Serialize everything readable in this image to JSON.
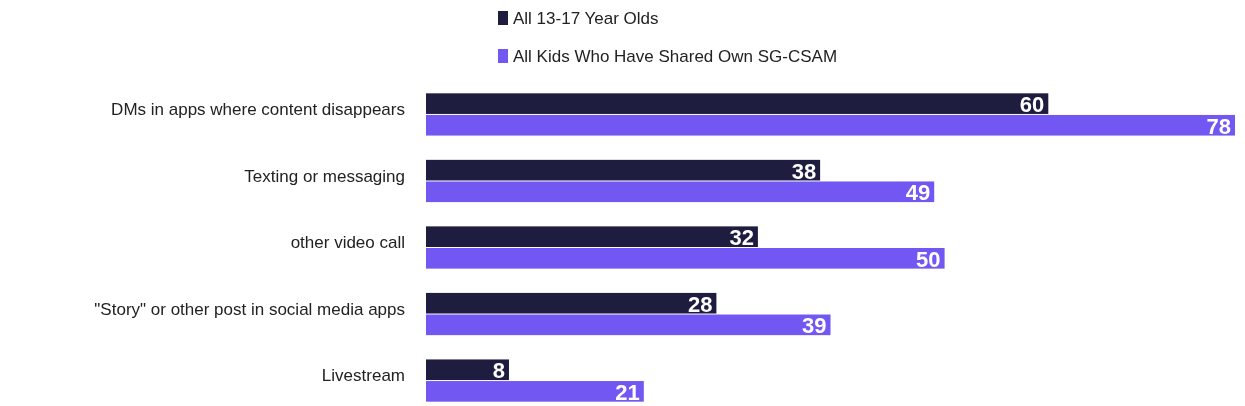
{
  "chart_data": {
    "type": "bar",
    "orientation": "horizontal",
    "data_labels": true,
    "legend": "top",
    "categories": [
      "DMs in apps where content disappears",
      "Texting or messaging",
      "other video call",
      "\"Story\" or other post in social media apps",
      "Livestream"
    ],
    "series": [
      {
        "name": "All 13-17 Year Olds",
        "color": "#1f1d3f",
        "values": [
          60,
          38,
          32,
          28,
          8
        ]
      },
      {
        "name": "All Kids Who Have Shared Own SG-CSAM",
        "color": "#7257f2",
        "values": [
          78,
          49,
          50,
          39,
          21
        ]
      }
    ]
  }
}
